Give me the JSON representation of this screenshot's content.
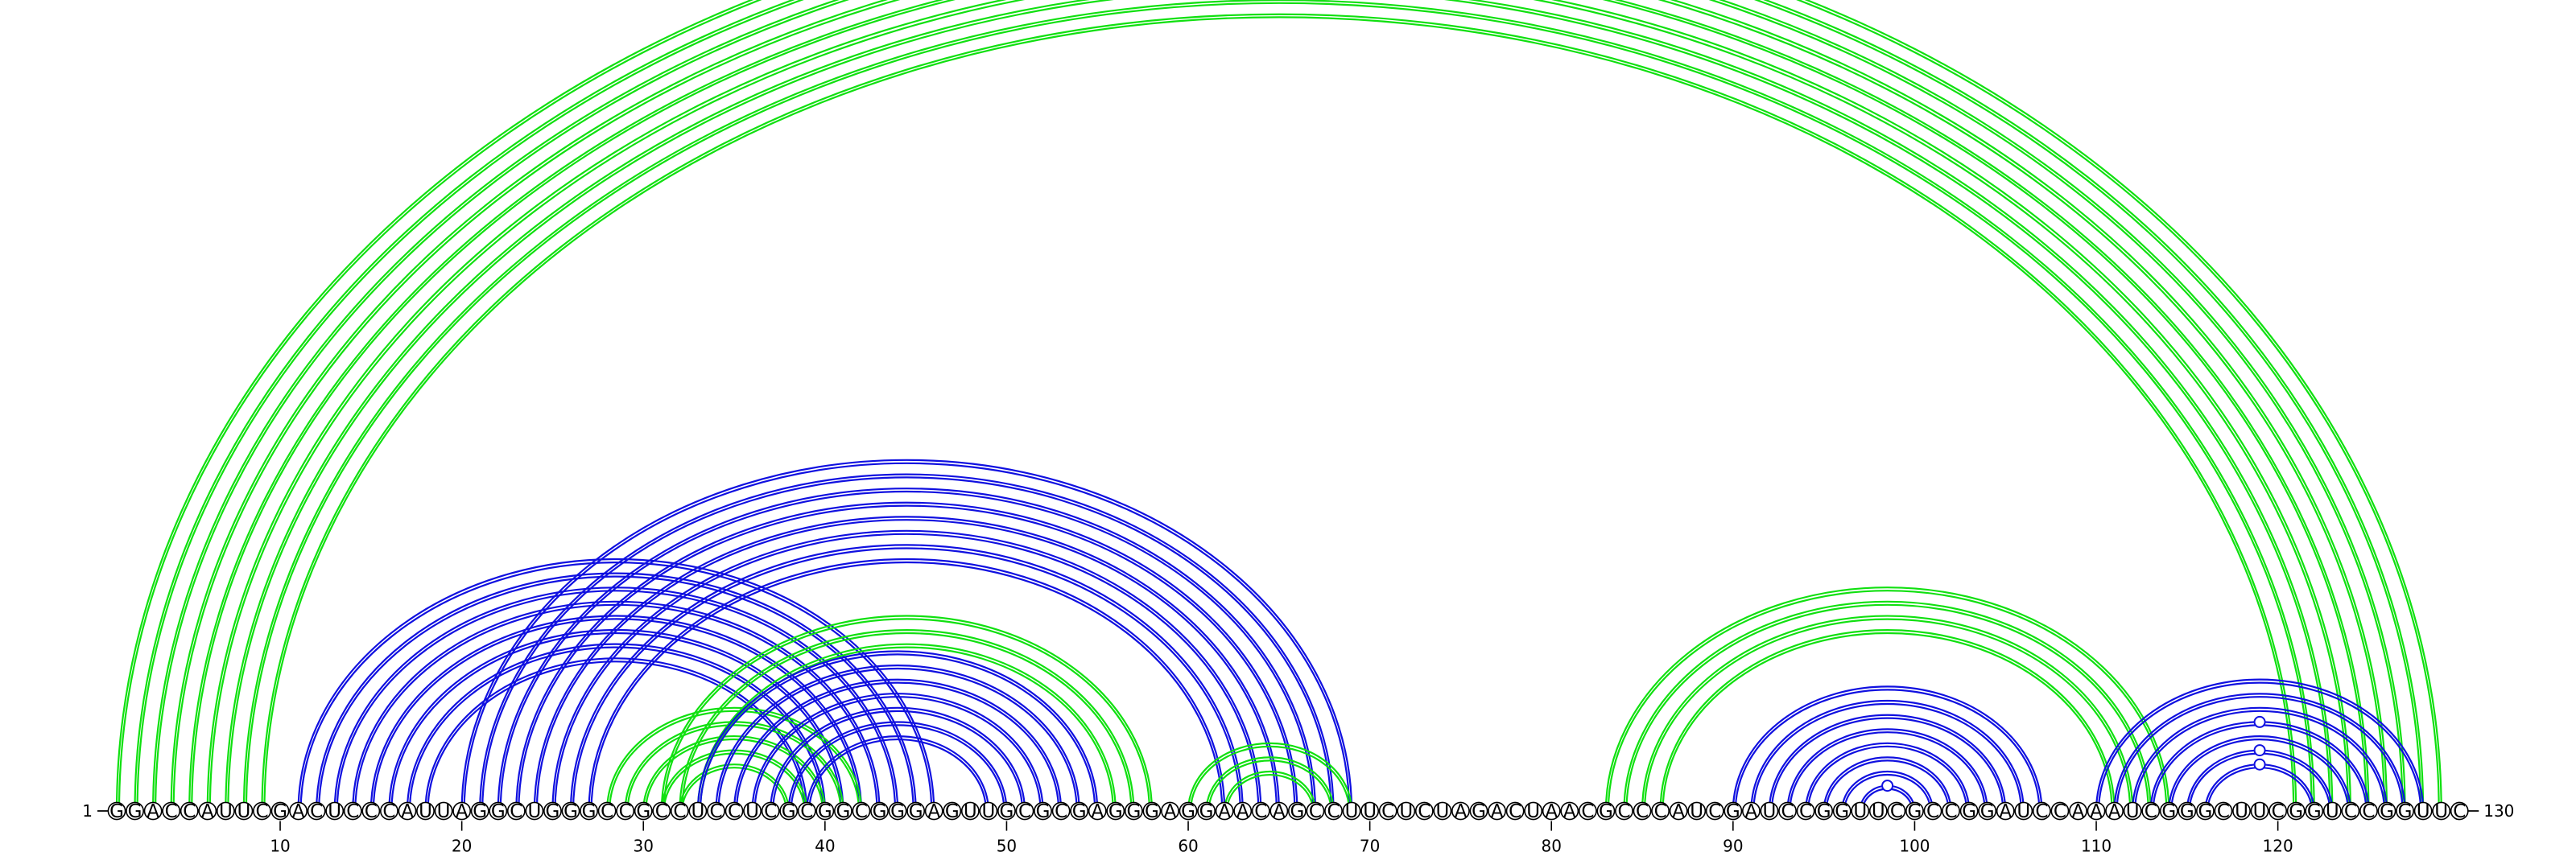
{
  "sequence": "GGACCAUUCGACUCCCAUUAGGCUGGGCCGCCUCCUCGCGGCGGGAGUUGCGCGAGGGAGGAACAGCCUUCUCUAGACUAACGCCCAUCGAUCCGGUUCGCCGGAUCCAAAUCGGGCUUCGGUCCGGUUC",
  "start_label": "1",
  "end_label": "130",
  "tick_labels": [
    "10",
    "20",
    "30",
    "40",
    "50",
    "60",
    "70",
    "80",
    "90",
    "100",
    "110",
    "120"
  ],
  "tick_positions": [
    10,
    20,
    30,
    40,
    50,
    60,
    70,
    80,
    90,
    100,
    110,
    120
  ],
  "colors": {
    "green": "#10e010",
    "blue": "#1010e0"
  },
  "pairs": [
    {
      "i": 1,
      "j": 129,
      "c": "green"
    },
    {
      "i": 2,
      "j": 128,
      "c": "green"
    },
    {
      "i": 3,
      "j": 127,
      "c": "green"
    },
    {
      "i": 4,
      "j": 126,
      "c": "green"
    },
    {
      "i": 5,
      "j": 125,
      "c": "green"
    },
    {
      "i": 6,
      "j": 124,
      "c": "green"
    },
    {
      "i": 7,
      "j": 123,
      "c": "green"
    },
    {
      "i": 8,
      "j": 122,
      "c": "green"
    },
    {
      "i": 9,
      "j": 121,
      "c": "green"
    },
    {
      "i": 11,
      "j": 46,
      "c": "blue"
    },
    {
      "i": 12,
      "j": 45,
      "c": "blue"
    },
    {
      "i": 13,
      "j": 44,
      "c": "blue"
    },
    {
      "i": 14,
      "j": 43,
      "c": "blue"
    },
    {
      "i": 15,
      "j": 42,
      "c": "blue"
    },
    {
      "i": 16,
      "j": 41,
      "c": "blue"
    },
    {
      "i": 17,
      "j": 40,
      "c": "blue"
    },
    {
      "i": 18,
      "j": 39,
      "c": "blue"
    },
    {
      "i": 20,
      "j": 69,
      "c": "blue"
    },
    {
      "i": 21,
      "j": 68,
      "c": "blue"
    },
    {
      "i": 22,
      "j": 67,
      "c": "blue"
    },
    {
      "i": 23,
      "j": 66,
      "c": "blue"
    },
    {
      "i": 24,
      "j": 65,
      "c": "blue"
    },
    {
      "i": 25,
      "j": 64,
      "c": "blue"
    },
    {
      "i": 26,
      "j": 63,
      "c": "blue"
    },
    {
      "i": 27,
      "j": 62,
      "c": "blue"
    },
    {
      "i": 28,
      "j": 42,
      "c": "green"
    },
    {
      "i": 29,
      "j": 41,
      "c": "green"
    },
    {
      "i": 30,
      "j": 40,
      "c": "green"
    },
    {
      "i": 31,
      "j": 39,
      "c": "green"
    },
    {
      "i": 32,
      "j": 38,
      "c": "green"
    },
    {
      "i": 31,
      "j": 58,
      "c": "green"
    },
    {
      "i": 32,
      "j": 57,
      "c": "green"
    },
    {
      "i": 33,
      "j": 56,
      "c": "green"
    },
    {
      "i": 33,
      "j": 55,
      "c": "blue"
    },
    {
      "i": 34,
      "j": 54,
      "c": "blue"
    },
    {
      "i": 35,
      "j": 53,
      "c": "blue"
    },
    {
      "i": 36,
      "j": 52,
      "c": "blue"
    },
    {
      "i": 37,
      "j": 51,
      "c": "blue"
    },
    {
      "i": 38,
      "j": 50,
      "c": "blue"
    },
    {
      "i": 39,
      "j": 49,
      "c": "blue"
    },
    {
      "i": 60,
      "j": 69,
      "c": "green"
    },
    {
      "i": 61,
      "j": 68,
      "c": "green"
    },
    {
      "i": 62,
      "j": 67,
      "c": "green"
    },
    {
      "i": 83,
      "j": 114,
      "c": "green"
    },
    {
      "i": 84,
      "j": 113,
      "c": "green"
    },
    {
      "i": 85,
      "j": 112,
      "c": "green"
    },
    {
      "i": 86,
      "j": 111,
      "c": "green"
    },
    {
      "i": 90,
      "j": 107,
      "c": "blue"
    },
    {
      "i": 91,
      "j": 106,
      "c": "blue"
    },
    {
      "i": 92,
      "j": 105,
      "c": "blue"
    },
    {
      "i": 93,
      "j": 104,
      "c": "blue"
    },
    {
      "i": 94,
      "j": 103,
      "c": "blue"
    },
    {
      "i": 95,
      "j": 102,
      "c": "blue"
    },
    {
      "i": 96,
      "j": 101,
      "c": "blue"
    },
    {
      "i": 97,
      "j": 100,
      "c": "blue"
    },
    {
      "i": 110,
      "j": 128,
      "c": "blue"
    },
    {
      "i": 111,
      "j": 127,
      "c": "blue"
    },
    {
      "i": 112,
      "j": 126,
      "c": "blue"
    },
    {
      "i": 113,
      "j": 125,
      "c": "blue"
    },
    {
      "i": 114,
      "j": 124,
      "c": "blue"
    },
    {
      "i": 115,
      "j": 123,
      "c": "blue"
    },
    {
      "i": 116,
      "j": 122,
      "c": "blue"
    }
  ],
  "markers": [
    {
      "i": 1,
      "j": 129,
      "c": "green"
    },
    {
      "i": 97,
      "j": 100,
      "c": "blue"
    },
    {
      "i": 116,
      "j": 122,
      "c": "blue"
    },
    {
      "i": 115,
      "j": 123,
      "c": "blue"
    },
    {
      "i": 113,
      "j": 125,
      "c": "blue"
    }
  ]
}
